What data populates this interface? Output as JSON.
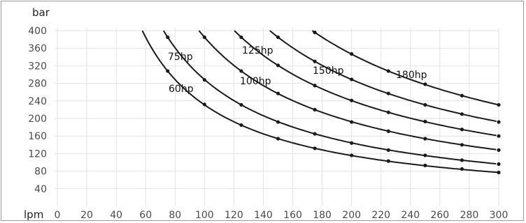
{
  "chart_data": {
    "type": "line",
    "ylabel": "bar",
    "xlabel": "lpm",
    "xlim": [
      0,
      300
    ],
    "ylim": [
      0,
      400
    ],
    "x_ticks": [
      0,
      20,
      40,
      60,
      80,
      100,
      120,
      140,
      160,
      180,
      200,
      220,
      240,
      260,
      280,
      300
    ],
    "y_ticks": [
      40,
      80,
      120,
      160,
      200,
      240,
      280,
      320,
      360,
      400
    ],
    "grid": true,
    "line_color": "#1a1a1a",
    "grid_color": "#e2e2e2",
    "series": [
      {
        "name": "60hp",
        "x": [
          75,
          100,
          125,
          150,
          175,
          200,
          225,
          250,
          275,
          300
        ],
        "y": [
          308,
          232,
          185,
          154,
          132,
          116,
          103,
          93,
          85,
          77
        ]
      },
      {
        "name": "75hp",
        "x": [
          75,
          100,
          125,
          150,
          175,
          200,
          225,
          250,
          275,
          300
        ],
        "y": [
          385,
          288,
          231,
          192,
          165,
          144,
          128,
          116,
          105,
          96
        ]
      },
      {
        "name": "100hp",
        "x": [
          100,
          125,
          150,
          175,
          200,
          225,
          250,
          275,
          300
        ],
        "y": [
          385,
          308,
          257,
          220,
          192,
          171,
          154,
          140,
          128
        ]
      },
      {
        "name": "125hp",
        "x": [
          125,
          150,
          175,
          200,
          225,
          250,
          275,
          300
        ],
        "y": [
          385,
          321,
          275,
          241,
          214,
          193,
          175,
          160
        ]
      },
      {
        "name": "150hp",
        "x": [
          150,
          175,
          200,
          225,
          250,
          275,
          300
        ],
        "y": [
          385,
          330,
          289,
          257,
          231,
          210,
          192
        ]
      },
      {
        "name": "180hp",
        "x": [
          175,
          200,
          225,
          250,
          275,
          300
        ],
        "y": [
          396,
          347,
          308,
          278,
          252,
          231
        ]
      }
    ]
  }
}
